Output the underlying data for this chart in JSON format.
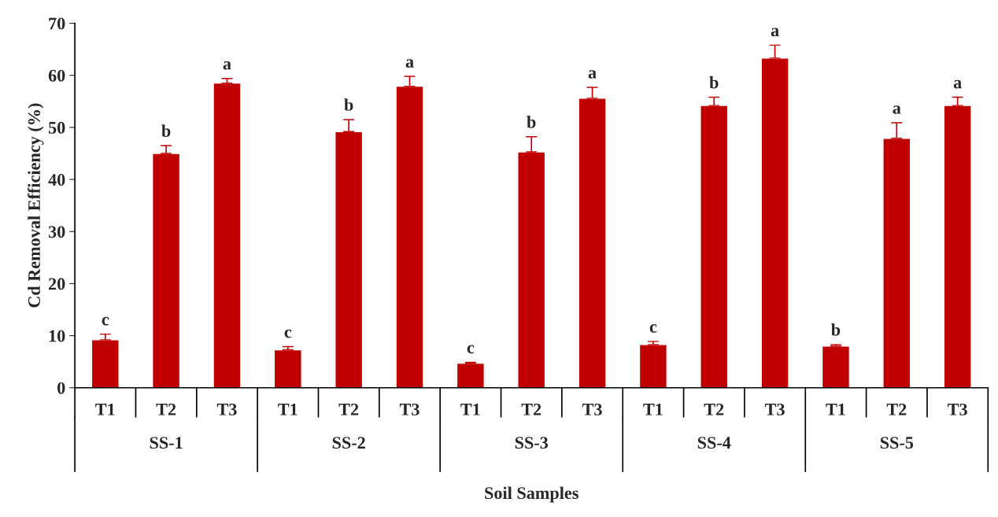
{
  "chart_data": {
    "type": "bar",
    "xlabel": "Soil Samples",
    "ylabel": "Cd Removal Efficiency (%)",
    "categories": [
      "T1",
      "T2",
      "T3",
      "T1",
      "T2",
      "T3",
      "T1",
      "T2",
      "T3",
      "T1",
      "T2",
      "T3",
      "T1",
      "T2",
      "T3"
    ],
    "values": [
      9.2,
      45.0,
      58.5,
      7.3,
      49.2,
      57.9,
      4.7,
      45.3,
      55.6,
      8.3,
      54.2,
      63.3,
      8.0,
      47.9,
      54.2
    ],
    "errors": [
      [
        9.2,
        10.3
      ],
      [
        45.0,
        46.5
      ],
      [
        58.5,
        59.4
      ],
      [
        7.3,
        7.9
      ],
      [
        49.2,
        51.5
      ],
      [
        57.9,
        59.8
      ],
      [
        4.7,
        4.9
      ],
      [
        45.3,
        48.2
      ],
      [
        55.6,
        57.7
      ],
      [
        8.3,
        8.9
      ],
      [
        54.2,
        55.8
      ],
      [
        63.3,
        65.8
      ],
      [
        8.0,
        8.3
      ],
      [
        47.9,
        50.9
      ],
      [
        54.2,
        55.8
      ]
    ],
    "value_labels": [
      "c",
      "b",
      "a",
      "c",
      "b",
      "a",
      "c",
      "b",
      "a",
      "c",
      "b",
      "a",
      "b",
      "a",
      "a"
    ],
    "color": "#c00000",
    "annotations": [
      "SS-1",
      "SS-2",
      "SS-3",
      "SS-4",
      "SS-5"
    ],
    "ylim": [
      0,
      70
    ],
    "yticks": [
      0,
      10,
      20,
      30,
      40,
      50,
      60,
      70
    ],
    "grid": false,
    "legend": false
  }
}
